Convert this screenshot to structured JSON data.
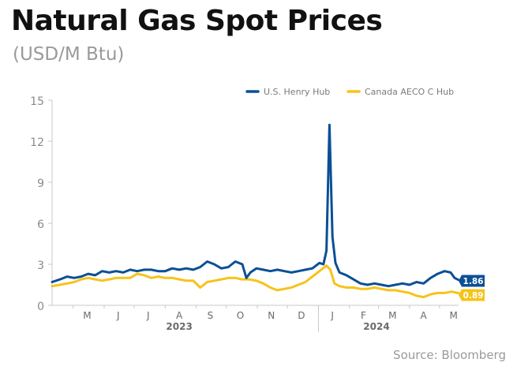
{
  "title": "Natural Gas Spot Prices",
  "subtitle": "(USD/M Btu)",
  "source": "Source: Bloomberg",
  "chart_data": {
    "type": "line",
    "xlabel": "",
    "ylabel": "",
    "ylim": [
      0,
      15
    ],
    "yticks": [
      0,
      3,
      6,
      9,
      12,
      15
    ],
    "ytick_labels": [
      "0",
      "3",
      "6",
      "9",
      "12",
      "15"
    ],
    "x_start": "2023-04-10",
    "x_end": "2024-05-20",
    "month_ticks": [
      {
        "label": "M",
        "date": "2023-05-15"
      },
      {
        "label": "J",
        "date": "2023-06-15"
      },
      {
        "label": "J",
        "date": "2023-07-15"
      },
      {
        "label": "A",
        "date": "2023-08-15"
      },
      {
        "label": "S",
        "date": "2023-09-15"
      },
      {
        "label": "O",
        "date": "2023-10-15"
      },
      {
        "label": "N",
        "date": "2023-11-15"
      },
      {
        "label": "D",
        "date": "2023-12-15"
      },
      {
        "label": "J",
        "date": "2024-01-15"
      },
      {
        "label": "F",
        "date": "2024-02-15"
      },
      {
        "label": "M",
        "date": "2024-03-15"
      },
      {
        "label": "A",
        "date": "2024-04-15"
      },
      {
        "label": "M",
        "date": "2024-05-15"
      }
    ],
    "year_labels": [
      {
        "label": "2023",
        "date": "2023-08-15"
      },
      {
        "label": "2024",
        "date": "2024-02-28"
      }
    ],
    "legend_position": "top-right",
    "grid": false,
    "series": [
      {
        "name": "U.S. Henry Hub",
        "color": "#0b4f96",
        "end_label": "1.86",
        "points": [
          [
            "2023-04-10",
            1.7
          ],
          [
            "2023-04-18",
            1.9
          ],
          [
            "2023-04-25",
            2.1
          ],
          [
            "2023-05-02",
            2.0
          ],
          [
            "2023-05-09",
            2.1
          ],
          [
            "2023-05-16",
            2.3
          ],
          [
            "2023-05-23",
            2.2
          ],
          [
            "2023-05-30",
            2.5
          ],
          [
            "2023-06-06",
            2.4
          ],
          [
            "2023-06-13",
            2.5
          ],
          [
            "2023-06-20",
            2.4
          ],
          [
            "2023-06-27",
            2.6
          ],
          [
            "2023-07-04",
            2.5
          ],
          [
            "2023-07-11",
            2.6
          ],
          [
            "2023-07-18",
            2.6
          ],
          [
            "2023-07-25",
            2.5
          ],
          [
            "2023-08-01",
            2.5
          ],
          [
            "2023-08-08",
            2.7
          ],
          [
            "2023-08-15",
            2.6
          ],
          [
            "2023-08-22",
            2.7
          ],
          [
            "2023-08-29",
            2.6
          ],
          [
            "2023-09-05",
            2.8
          ],
          [
            "2023-09-12",
            3.2
          ],
          [
            "2023-09-19",
            3.0
          ],
          [
            "2023-09-26",
            2.7
          ],
          [
            "2023-10-03",
            2.8
          ],
          [
            "2023-10-10",
            3.2
          ],
          [
            "2023-10-17",
            3.0
          ],
          [
            "2023-10-21",
            2.0
          ],
          [
            "2023-10-25",
            2.4
          ],
          [
            "2023-10-31",
            2.7
          ],
          [
            "2023-11-07",
            2.6
          ],
          [
            "2023-11-14",
            2.5
          ],
          [
            "2023-11-21",
            2.6
          ],
          [
            "2023-11-28",
            2.5
          ],
          [
            "2023-12-05",
            2.4
          ],
          [
            "2023-12-12",
            2.5
          ],
          [
            "2023-12-19",
            2.6
          ],
          [
            "2023-12-26",
            2.7
          ],
          [
            "2024-01-02",
            3.1
          ],
          [
            "2024-01-06",
            3.0
          ],
          [
            "2024-01-09",
            4.0
          ],
          [
            "2024-01-12",
            13.2
          ],
          [
            "2024-01-15",
            5.0
          ],
          [
            "2024-01-18",
            3.1
          ],
          [
            "2024-01-22",
            2.4
          ],
          [
            "2024-01-29",
            2.2
          ],
          [
            "2024-02-05",
            1.9
          ],
          [
            "2024-02-12",
            1.6
          ],
          [
            "2024-02-19",
            1.5
          ],
          [
            "2024-02-26",
            1.6
          ],
          [
            "2024-03-04",
            1.5
          ],
          [
            "2024-03-11",
            1.4
          ],
          [
            "2024-03-18",
            1.5
          ],
          [
            "2024-03-25",
            1.6
          ],
          [
            "2024-04-01",
            1.5
          ],
          [
            "2024-04-08",
            1.7
          ],
          [
            "2024-04-15",
            1.6
          ],
          [
            "2024-04-22",
            2.0
          ],
          [
            "2024-04-29",
            2.3
          ],
          [
            "2024-05-06",
            2.5
          ],
          [
            "2024-05-12",
            2.4
          ],
          [
            "2024-05-16",
            2.0
          ],
          [
            "2024-05-20",
            1.86
          ]
        ]
      },
      {
        "name": "Canada AECO C Hub",
        "color": "#f7c31a",
        "end_label": "0.89",
        "points": [
          [
            "2023-04-10",
            1.4
          ],
          [
            "2023-04-18",
            1.5
          ],
          [
            "2023-04-25",
            1.6
          ],
          [
            "2023-05-02",
            1.7
          ],
          [
            "2023-05-09",
            1.9
          ],
          [
            "2023-05-16",
            2.0
          ],
          [
            "2023-05-23",
            1.9
          ],
          [
            "2023-05-30",
            1.8
          ],
          [
            "2023-06-06",
            1.9
          ],
          [
            "2023-06-13",
            2.0
          ],
          [
            "2023-06-20",
            2.0
          ],
          [
            "2023-06-27",
            2.0
          ],
          [
            "2023-07-04",
            2.3
          ],
          [
            "2023-07-11",
            2.2
          ],
          [
            "2023-07-18",
            2.0
          ],
          [
            "2023-07-25",
            2.1
          ],
          [
            "2023-08-01",
            2.0
          ],
          [
            "2023-08-08",
            2.0
          ],
          [
            "2023-08-15",
            1.9
          ],
          [
            "2023-08-22",
            1.8
          ],
          [
            "2023-08-29",
            1.8
          ],
          [
            "2023-09-05",
            1.3
          ],
          [
            "2023-09-12",
            1.7
          ],
          [
            "2023-09-19",
            1.8
          ],
          [
            "2023-09-26",
            1.9
          ],
          [
            "2023-10-03",
            2.0
          ],
          [
            "2023-10-10",
            2.0
          ],
          [
            "2023-10-17",
            1.9
          ],
          [
            "2023-10-24",
            1.9
          ],
          [
            "2023-10-31",
            1.8
          ],
          [
            "2023-11-07",
            1.6
          ],
          [
            "2023-11-14",
            1.3
          ],
          [
            "2023-11-21",
            1.1
          ],
          [
            "2023-11-28",
            1.2
          ],
          [
            "2023-12-05",
            1.3
          ],
          [
            "2023-12-12",
            1.5
          ],
          [
            "2023-12-19",
            1.7
          ],
          [
            "2023-12-26",
            2.1
          ],
          [
            "2024-01-02",
            2.5
          ],
          [
            "2024-01-09",
            2.9
          ],
          [
            "2024-01-13",
            2.6
          ],
          [
            "2024-01-17",
            1.6
          ],
          [
            "2024-01-22",
            1.4
          ],
          [
            "2024-01-29",
            1.3
          ],
          [
            "2024-02-05",
            1.3
          ],
          [
            "2024-02-12",
            1.2
          ],
          [
            "2024-02-19",
            1.2
          ],
          [
            "2024-02-26",
            1.3
          ],
          [
            "2024-03-04",
            1.2
          ],
          [
            "2024-03-11",
            1.1
          ],
          [
            "2024-03-18",
            1.1
          ],
          [
            "2024-03-25",
            1.0
          ],
          [
            "2024-04-01",
            0.9
          ],
          [
            "2024-04-08",
            0.7
          ],
          [
            "2024-04-15",
            0.6
          ],
          [
            "2024-04-22",
            0.8
          ],
          [
            "2024-04-29",
            0.9
          ],
          [
            "2024-05-06",
            0.9
          ],
          [
            "2024-05-13",
            1.0
          ],
          [
            "2024-05-20",
            0.89
          ]
        ]
      }
    ]
  }
}
